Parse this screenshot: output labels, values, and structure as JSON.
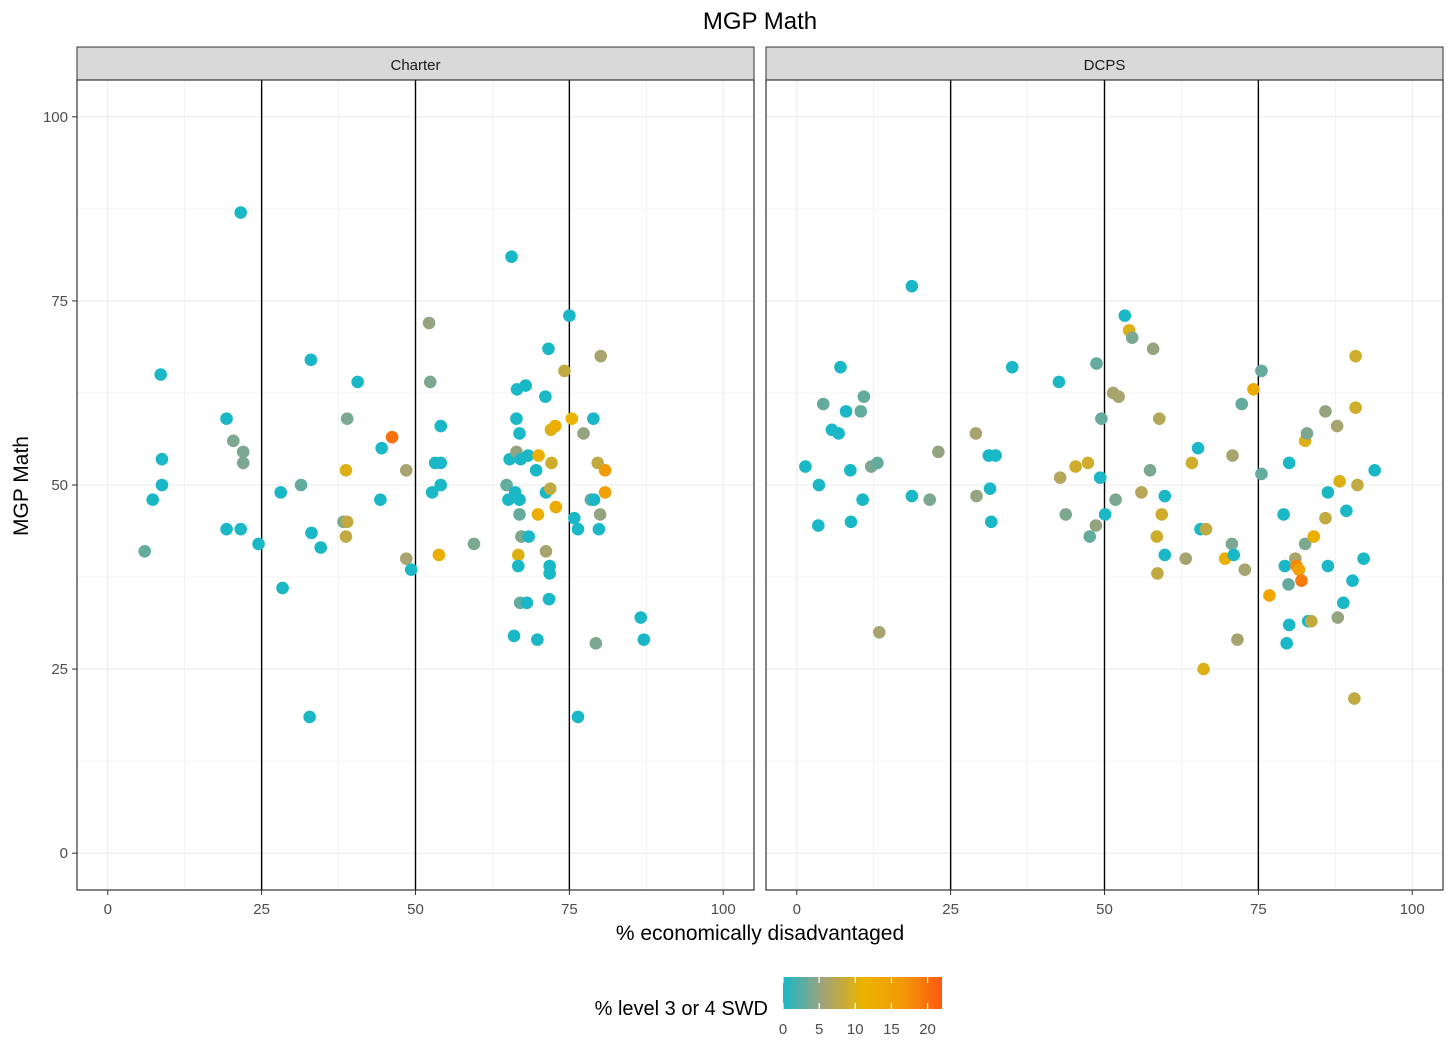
{
  "chart_data": {
    "type": "scatter",
    "title": "MGP Math",
    "xlabel": "% economically disadvantaged",
    "ylabel": "MGP Math",
    "xlim": [
      -5,
      105
    ],
    "ylim": [
      -5,
      105
    ],
    "x_ticks": [
      "0",
      "25",
      "50",
      "75",
      "100"
    ],
    "y_ticks": [
      "0",
      "25",
      "50",
      "75",
      "100"
    ],
    "reference_lines_x": [
      25,
      50,
      75
    ],
    "grid": true,
    "legend": {
      "title": "% level 3 or 4 SWD",
      "placement": "bottom",
      "ticks": [
        "0",
        "5",
        "10",
        "15",
        "20"
      ],
      "range": [
        0,
        22
      ],
      "colors": [
        "#1ab8c6",
        "#a0a27a",
        "#eab400",
        "#f39a06",
        "#fe5810"
      ]
    },
    "facets": [
      {
        "name": "Charter",
        "points": [
          [
            6,
            41,
            3
          ],
          [
            7.3,
            48,
            0
          ],
          [
            8.6,
            65,
            0
          ],
          [
            8.8,
            53.5,
            0
          ],
          [
            8.8,
            50,
            0
          ],
          [
            19.3,
            59,
            0
          ],
          [
            19.3,
            44,
            0
          ],
          [
            20.4,
            56,
            4
          ],
          [
            21.6,
            87,
            0
          ],
          [
            21.6,
            44,
            0
          ],
          [
            22,
            54.5,
            4
          ],
          [
            22,
            53,
            4
          ],
          [
            24.5,
            42,
            0
          ],
          [
            28.1,
            49,
            0
          ],
          [
            28.4,
            36,
            0
          ],
          [
            31.4,
            50,
            3
          ],
          [
            32.8,
            18.5,
            0
          ],
          [
            33,
            67,
            0
          ],
          [
            33.1,
            43.5,
            0
          ],
          [
            34.6,
            41.5,
            0
          ],
          [
            38.3,
            45,
            4
          ],
          [
            38.7,
            43,
            8
          ],
          [
            38.7,
            52,
            10
          ],
          [
            38.9,
            45,
            8
          ],
          [
            38.9,
            59,
            4
          ],
          [
            40.6,
            64,
            0
          ],
          [
            44.3,
            48,
            0
          ],
          [
            44.5,
            55,
            0
          ],
          [
            46.2,
            56.5,
            20
          ],
          [
            48.5,
            52,
            6
          ],
          [
            48.5,
            40,
            6
          ],
          [
            49.3,
            38.5,
            0
          ],
          [
            52.2,
            72,
            5
          ],
          [
            52.4,
            64,
            4
          ],
          [
            52.7,
            49,
            0
          ],
          [
            53.2,
            53,
            0
          ],
          [
            53.8,
            40.5,
            12
          ],
          [
            54.1,
            53,
            0
          ],
          [
            54.1,
            58,
            0
          ],
          [
            54.1,
            50,
            0
          ],
          [
            59.5,
            42,
            4
          ],
          [
            64.8,
            50,
            3
          ],
          [
            65.1,
            48,
            0
          ],
          [
            65.3,
            53.5,
            0
          ],
          [
            65.6,
            81,
            0
          ],
          [
            66,
            29.5,
            0
          ],
          [
            66.2,
            49,
            0
          ],
          [
            66.4,
            54.5,
            5
          ],
          [
            66.4,
            59,
            0
          ],
          [
            66.5,
            63,
            0
          ],
          [
            66.7,
            40.5,
            10
          ],
          [
            66.7,
            39,
            0
          ],
          [
            66.9,
            57,
            0
          ],
          [
            66.9,
            46,
            3
          ],
          [
            66.9,
            48,
            0
          ],
          [
            67,
            34,
            3
          ],
          [
            67.1,
            53.5,
            0
          ],
          [
            67.2,
            43,
            4
          ],
          [
            67.9,
            63.5,
            0
          ],
          [
            68.1,
            34,
            0
          ],
          [
            68.3,
            54,
            0
          ],
          [
            68.4,
            43,
            0
          ],
          [
            69.6,
            52,
            0
          ],
          [
            69.8,
            29,
            0
          ],
          [
            69.9,
            46,
            12
          ],
          [
            70,
            54,
            12
          ],
          [
            71.1,
            62,
            0
          ],
          [
            71.2,
            41,
            6
          ],
          [
            71.2,
            49,
            0
          ],
          [
            71.6,
            68.5,
            0
          ],
          [
            71.7,
            34.5,
            0
          ],
          [
            71.8,
            39,
            0
          ],
          [
            71.8,
            38,
            0
          ],
          [
            71.9,
            49.5,
            8
          ],
          [
            72,
            57.5,
            10
          ],
          [
            72.1,
            53,
            9
          ],
          [
            72.7,
            58,
            12
          ],
          [
            72.8,
            47,
            13
          ],
          [
            74.2,
            65.5,
            8
          ],
          [
            75,
            73,
            0
          ],
          [
            75.4,
            59,
            11
          ],
          [
            75.8,
            45.5,
            0
          ],
          [
            76.4,
            44,
            0
          ],
          [
            76.4,
            18.5,
            0
          ],
          [
            77.3,
            57,
            5
          ],
          [
            78.5,
            48,
            3
          ],
          [
            78.9,
            59,
            0
          ],
          [
            79,
            48,
            0
          ],
          [
            79.3,
            28.5,
            4
          ],
          [
            79.6,
            53,
            8
          ],
          [
            79.8,
            44,
            0
          ],
          [
            80,
            46,
            5
          ],
          [
            80.1,
            67.5,
            6
          ],
          [
            80.8,
            52,
            16
          ],
          [
            80.8,
            49,
            15
          ],
          [
            86.6,
            32,
            0
          ],
          [
            87.1,
            29,
            0
          ]
        ]
      },
      {
        "name": "DCPS",
        "points": [
          [
            1.4,
            52.5,
            0
          ],
          [
            3.5,
            44.5,
            0
          ],
          [
            3.6,
            50,
            0
          ],
          [
            4.3,
            61,
            3
          ],
          [
            5.7,
            57.5,
            0
          ],
          [
            6.8,
            57,
            0
          ],
          [
            7.1,
            66,
            0
          ],
          [
            8,
            60,
            0
          ],
          [
            8.7,
            52,
            0
          ],
          [
            8.8,
            45,
            0
          ],
          [
            10.4,
            60,
            3
          ],
          [
            10.7,
            48,
            0
          ],
          [
            10.9,
            62,
            3
          ],
          [
            12.1,
            52.5,
            4
          ],
          [
            13.1,
            53,
            3
          ],
          [
            13.4,
            30,
            6
          ],
          [
            18.7,
            77,
            0
          ],
          [
            18.7,
            48.5,
            0
          ],
          [
            21.6,
            48,
            4
          ],
          [
            23,
            54.5,
            5
          ],
          [
            29.1,
            57,
            6
          ],
          [
            29.2,
            48.5,
            5
          ],
          [
            31.2,
            54,
            0
          ],
          [
            31.4,
            49.5,
            0
          ],
          [
            31.6,
            45,
            0
          ],
          [
            32.3,
            54,
            0
          ],
          [
            35,
            66,
            0
          ],
          [
            42.6,
            64,
            0
          ],
          [
            42.8,
            51,
            7
          ],
          [
            43.7,
            46,
            4
          ],
          [
            45.3,
            52.5,
            9
          ],
          [
            47.3,
            53,
            9
          ],
          [
            47.6,
            43,
            3
          ],
          [
            48.6,
            44.5,
            5
          ],
          [
            48.7,
            66.5,
            3
          ],
          [
            49.3,
            51,
            0
          ],
          [
            49.5,
            59,
            3
          ],
          [
            50.1,
            46,
            0
          ],
          [
            51.4,
            62.5,
            6
          ],
          [
            51.8,
            48,
            4
          ],
          [
            52.3,
            62,
            6
          ],
          [
            53.3,
            73,
            0
          ],
          [
            54,
            71,
            10
          ],
          [
            54.5,
            70,
            4
          ],
          [
            56,
            49,
            7
          ],
          [
            57.4,
            52,
            4
          ],
          [
            57.9,
            68.5,
            5
          ],
          [
            58.5,
            43,
            9
          ],
          [
            58.6,
            38,
            8
          ],
          [
            58.9,
            59,
            7
          ],
          [
            59.3,
            46,
            9
          ],
          [
            59.8,
            48.5,
            0
          ],
          [
            59.8,
            40.5,
            0
          ],
          [
            63.2,
            40,
            6
          ],
          [
            64.2,
            53,
            9
          ],
          [
            65.2,
            55,
            0
          ],
          [
            65.6,
            44,
            0
          ],
          [
            66.1,
            25,
            10
          ],
          [
            66.5,
            44,
            8
          ],
          [
            69.6,
            40,
            12
          ],
          [
            70.7,
            42,
            4
          ],
          [
            70.8,
            54,
            6
          ],
          [
            71,
            40.5,
            0
          ],
          [
            71.6,
            29,
            6
          ],
          [
            72.3,
            61,
            3
          ],
          [
            72.8,
            38.5,
            6
          ],
          [
            74.2,
            63,
            13
          ],
          [
            75.5,
            65.5,
            3
          ],
          [
            75.5,
            51.5,
            3
          ],
          [
            76.8,
            35,
            14
          ],
          [
            79.1,
            46,
            0
          ],
          [
            79.3,
            39,
            0
          ],
          [
            79.6,
            28.5,
            0
          ],
          [
            79.9,
            36.5,
            3
          ],
          [
            80,
            53,
            0
          ],
          [
            80,
            31,
            0
          ],
          [
            81,
            40,
            6
          ],
          [
            81.2,
            39,
            18
          ],
          [
            81.6,
            38.5,
            15
          ],
          [
            82,
            37,
            19
          ],
          [
            82.6,
            42,
            4
          ],
          [
            82.6,
            56,
            10
          ],
          [
            82.9,
            57,
            4
          ],
          [
            83.1,
            31.5,
            0
          ],
          [
            83.6,
            31.5,
            8
          ],
          [
            84,
            43,
            12
          ],
          [
            85.9,
            45.5,
            8
          ],
          [
            85.9,
            60,
            5
          ],
          [
            86.3,
            49,
            0
          ],
          [
            86.3,
            39,
            0
          ],
          [
            87.8,
            58,
            6
          ],
          [
            87.9,
            32,
            5
          ],
          [
            88.2,
            50.5,
            10
          ],
          [
            88.8,
            34,
            0
          ],
          [
            89.3,
            46.5,
            0
          ],
          [
            90.3,
            37,
            0
          ],
          [
            90.6,
            21,
            8
          ],
          [
            90.8,
            60.5,
            9
          ],
          [
            90.8,
            67.5,
            9
          ],
          [
            91.1,
            50,
            8
          ],
          [
            92.1,
            40,
            0
          ],
          [
            93.9,
            52,
            0
          ]
        ]
      }
    ]
  }
}
